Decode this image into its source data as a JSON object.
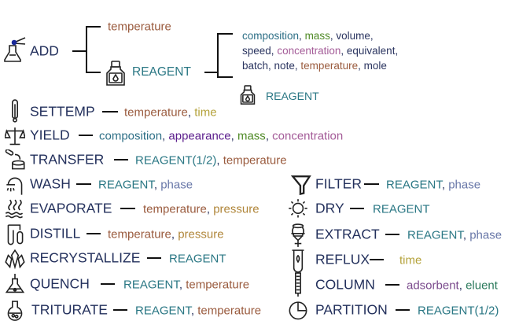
{
  "colors": {
    "action": "#23305c",
    "temperature": "#9a5b3e",
    "time": "#b4a23a",
    "reagent": "#2a7784",
    "composition": "#2d6f86",
    "mass": "#4f8a26",
    "plain": "#2b3560",
    "concentration": "#a45c98",
    "appearance": "#5b1d8c",
    "pressure": "#b0863a",
    "phase": "#6877a8",
    "adsorbent": "#7a4a8c",
    "eluent": "#2b7a5c"
  },
  "add": {
    "label": "ADD",
    "icon": "flask-dropper-icon",
    "branch_top": {
      "text": "temperature",
      "color": "temperature"
    },
    "reagent": {
      "label": "REAGENT",
      "icon": "reagent-bottle-icon"
    },
    "reagent_attrs": [
      [
        {
          "text": "composition",
          "color": "composition"
        },
        {
          "text": "mass",
          "color": "mass"
        },
        {
          "text": "volume",
          "color": "plain"
        }
      ],
      [
        {
          "text": "speed",
          "color": "plain"
        },
        {
          "text": "concentration",
          "color": "concentration"
        },
        {
          "text": "equivalent",
          "color": "plain"
        }
      ],
      [
        {
          "text": "batch",
          "color": "plain"
        },
        {
          "text": "note",
          "color": "plain"
        },
        {
          "text": "temperature",
          "color": "temperature"
        },
        {
          "text": "mole",
          "color": "plain"
        }
      ]
    ],
    "sub_reagent": {
      "label": "REAGENT",
      "icon": "reagent-bottle-icon"
    }
  },
  "rows": [
    {
      "label": "SETTEMP",
      "icon": "thermometer-icon",
      "params": [
        {
          "text": "temperature",
          "color": "temperature"
        },
        {
          "text": "time",
          "color": "time"
        }
      ]
    },
    {
      "label": "YIELD",
      "icon": "balance-scale-icon",
      "params": [
        {
          "text": "composition",
          "color": "composition"
        },
        {
          "text": "appearance",
          "color": "appearance"
        },
        {
          "text": "mass",
          "color": "mass"
        },
        {
          "text": "concentration",
          "color": "concentration"
        }
      ]
    },
    {
      "label": "TRANSFER",
      "icon": "transfer-icon",
      "params": [
        {
          "text": "REAGENT(1/2)",
          "color": "reagent"
        },
        {
          "text": "temperature",
          "color": "temperature"
        }
      ]
    },
    {
      "label": "WASH",
      "icon": "shower-icon",
      "params": [
        {
          "text": "REAGENT",
          "color": "reagent"
        },
        {
          "text": "phase",
          "color": "phase"
        }
      ]
    },
    {
      "label": "EVAPORATE",
      "icon": "evaporate-icon",
      "params": [
        {
          "text": "temperature",
          "color": "temperature"
        },
        {
          "text": "pressure",
          "color": "pressure"
        }
      ]
    },
    {
      "label": "DISTILL",
      "icon": "distill-icon",
      "params": [
        {
          "text": "temperature",
          "color": "temperature"
        },
        {
          "text": "pressure",
          "color": "pressure"
        }
      ]
    },
    {
      "label": "RECRYSTALLIZE",
      "icon": "crystal-icon",
      "params": [
        {
          "text": "REAGENT",
          "color": "reagent"
        }
      ]
    },
    {
      "label": "QUENCH",
      "icon": "flask-icon",
      "params": [
        {
          "text": "REAGENT",
          "color": "reagent"
        },
        {
          "text": "temperature",
          "color": "temperature"
        }
      ]
    },
    {
      "label": "TRITURATE",
      "icon": "round-flask-icon",
      "params": [
        {
          "text": "REAGENT",
          "color": "reagent"
        },
        {
          "text": "temperature",
          "color": "temperature"
        }
      ]
    },
    {
      "label": "FILTER",
      "icon": "funnel-icon",
      "params": [
        {
          "text": "REAGENT",
          "color": "reagent"
        },
        {
          "text": "phase",
          "color": "phase"
        }
      ]
    },
    {
      "label": "DRY",
      "icon": "sun-icon",
      "params": [
        {
          "text": "REAGENT",
          "color": "reagent"
        }
      ]
    },
    {
      "label": "EXTRACT",
      "icon": "separatory-funnel-icon",
      "params": [
        {
          "text": "REAGENT",
          "color": "reagent"
        },
        {
          "text": "phase",
          "color": "phase"
        }
      ]
    },
    {
      "label": "REFLUX",
      "icon": "reflux-tube-icon",
      "params": [
        {
          "text": "time",
          "color": "time"
        }
      ]
    },
    {
      "label": "COLUMN",
      "icon": "column-icon",
      "params": [
        {
          "text": "adsorbent",
          "color": "adsorbent"
        },
        {
          "text": "eluent",
          "color": "eluent"
        }
      ]
    },
    {
      "label": "PARTITION",
      "icon": "pie-partition-icon",
      "params": [
        {
          "text": "REAGENT(1/2)",
          "color": "reagent"
        }
      ]
    }
  ]
}
